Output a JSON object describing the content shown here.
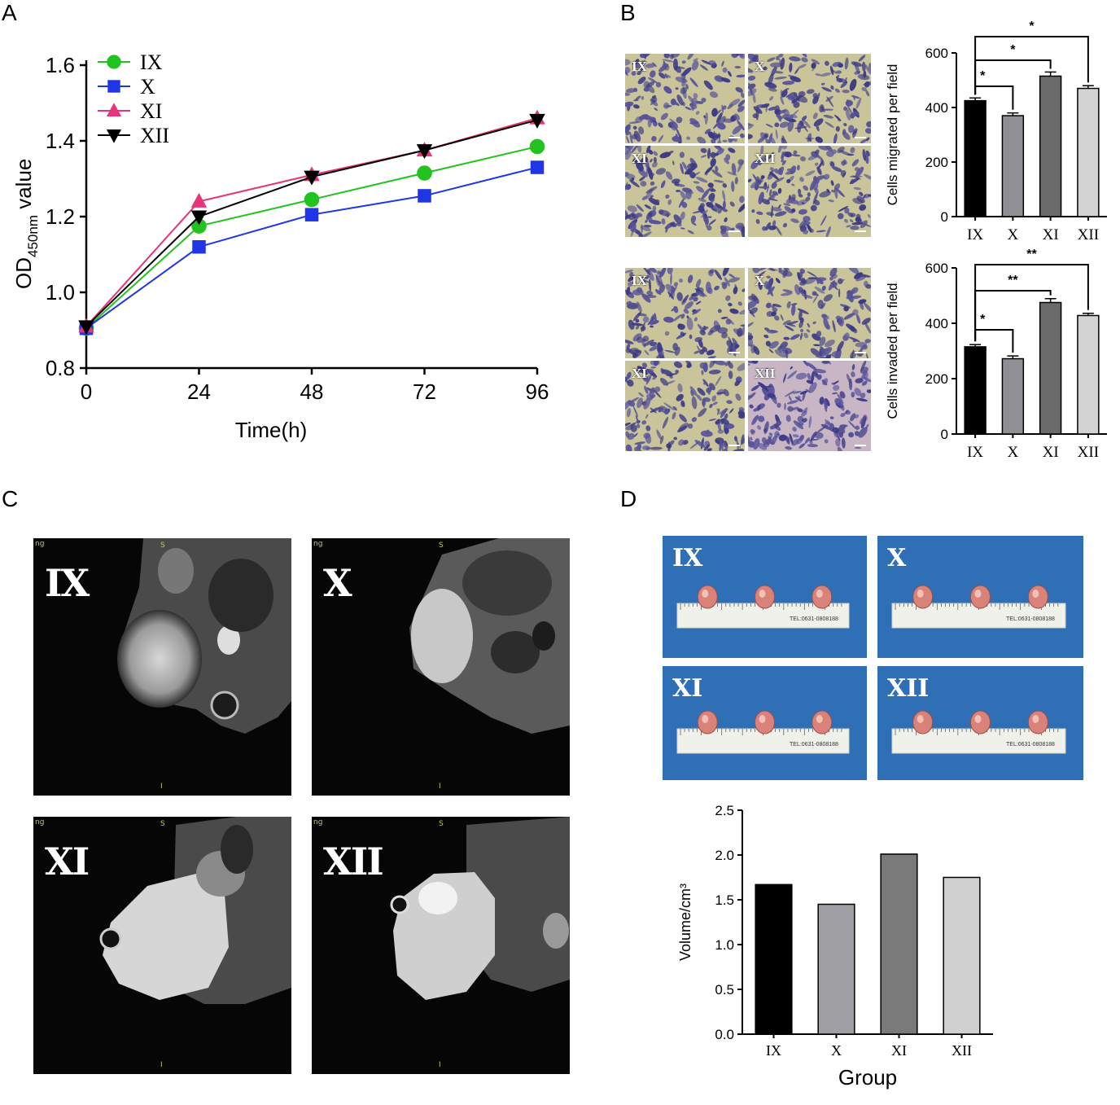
{
  "panels": {
    "a": "A",
    "b": "B",
    "c": "C",
    "d": "D"
  },
  "panel_b": {
    "micro_top": [
      "IX",
      "X",
      "XI",
      "XII"
    ],
    "micro_bottom": [
      "IX",
      "X",
      "XI",
      "XII"
    ]
  },
  "panel_c": {
    "labels": [
      "IX",
      "X",
      "XI",
      "XII"
    ],
    "marker_s": "S",
    "marker_i": "I",
    "marker_ng": "ng"
  },
  "panel_d": {
    "photo_labels": [
      "IX",
      "X",
      "XI",
      "XII"
    ],
    "ruler_text": "TEL:0631-0808188"
  },
  "chart_data": [
    {
      "id": "growth",
      "type": "line",
      "xlabel": "Time(h)",
      "ylabel_main": "OD",
      "ylabel_sub": "450nm",
      "ylabel_tail": " value",
      "x": [
        0,
        24,
        48,
        72,
        96
      ],
      "xlim": [
        0,
        96
      ],
      "ylim": [
        0.8,
        1.6
      ],
      "yticks": [
        "0.8",
        "1.0",
        "1.2",
        "1.4",
        "1.6"
      ],
      "xticks": [
        "0",
        "24",
        "48",
        "72",
        "96"
      ],
      "legend_position": "top-left",
      "series": [
        {
          "name": "IX",
          "marker": "circle",
          "color": "#22c21f",
          "values": [
            0.905,
            1.175,
            1.245,
            1.315,
            1.385
          ]
        },
        {
          "name": "X",
          "marker": "square",
          "color": "#1f35e6",
          "values": [
            0.905,
            1.12,
            1.205,
            1.255,
            1.33
          ]
        },
        {
          "name": "XI",
          "marker": "triangle-up",
          "color": "#e8347a",
          "values": [
            0.91,
            1.24,
            1.31,
            1.375,
            1.46
          ]
        },
        {
          "name": "XII",
          "marker": "triangle-down",
          "color": "#000000",
          "values": [
            0.91,
            1.2,
            1.305,
            1.375,
            1.455
          ]
        }
      ]
    },
    {
      "id": "migration",
      "type": "bar",
      "ylabel": "Cells migrated per field",
      "categories": [
        "IX",
        "X",
        "XI",
        "XII"
      ],
      "values": [
        425,
        370,
        515,
        470
      ],
      "errors": [
        10,
        10,
        15,
        10
      ],
      "ylim": [
        0,
        600
      ],
      "yticks": [
        "0",
        "200",
        "400",
        "600"
      ],
      "colors": [
        "#000000",
        "#909094",
        "#6b6b6b",
        "#d3d3d3"
      ],
      "brackets": [
        {
          "from": 0,
          "to": 1,
          "label": "*"
        },
        {
          "from": 0,
          "to": 2,
          "label": "*"
        },
        {
          "from": 0,
          "to": 3,
          "label": "*"
        }
      ]
    },
    {
      "id": "invasion",
      "type": "bar",
      "ylabel": "Cells invaded per field",
      "categories": [
        "IX",
        "X",
        "XI",
        "XII"
      ],
      "values": [
        315,
        272,
        475,
        428
      ],
      "errors": [
        8,
        10,
        14,
        8
      ],
      "ylim": [
        0,
        600
      ],
      "yticks": [
        "0",
        "200",
        "400",
        "600"
      ],
      "colors": [
        "#000000",
        "#909094",
        "#6b6b6b",
        "#d3d3d3"
      ],
      "brackets": [
        {
          "from": 0,
          "to": 1,
          "label": "*"
        },
        {
          "from": 0,
          "to": 2,
          "label": "**"
        },
        {
          "from": 0,
          "to": 3,
          "label": "**"
        }
      ]
    },
    {
      "id": "volume",
      "type": "bar",
      "xlabel": "Group",
      "ylabel": "Volume/cm³",
      "categories": [
        "IX",
        "X",
        "XI",
        "XII"
      ],
      "values": [
        1.67,
        1.45,
        2.01,
        1.75
      ],
      "ylim": [
        0,
        2.5
      ],
      "yticks": [
        "0.0",
        "0.5",
        "1.0",
        "1.5",
        "2.0",
        "2.5"
      ],
      "colors": [
        "#000000",
        "#a0a0a4",
        "#7a7a7a",
        "#d0d0d0"
      ]
    }
  ]
}
